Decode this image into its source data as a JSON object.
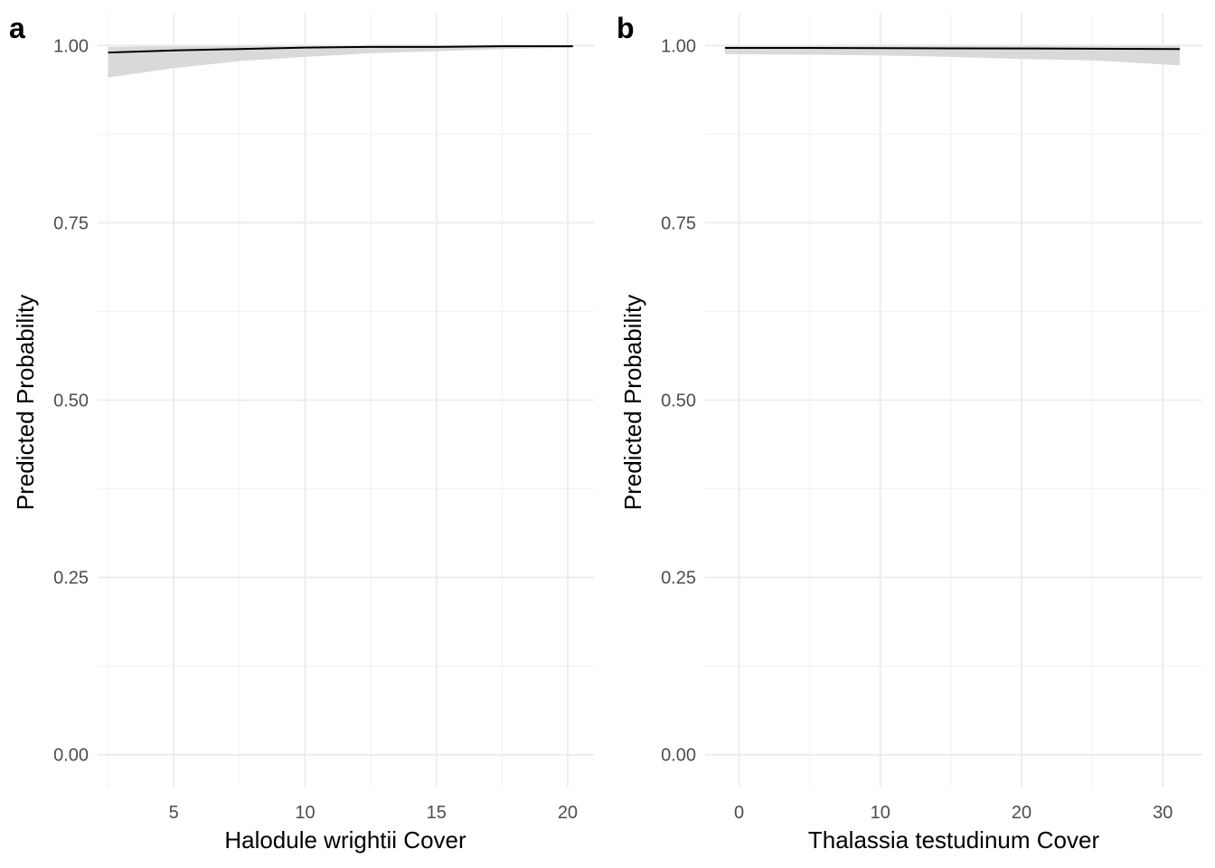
{
  "colors": {
    "grid_major": "#ebebeb",
    "grid_minor": "#f3f3f3",
    "ribbon": "#d9d9d9",
    "line": "#000000"
  },
  "chart_data": [
    {
      "type": "line",
      "panel_tag": "a",
      "xlabel": "Halodule wrightii Cover",
      "ylabel": "Predicted Probability",
      "xlim": [
        2.1,
        21.0
      ],
      "ylim": [
        -0.045,
        1.045
      ],
      "x_ticks": [
        5,
        10,
        15,
        20
      ],
      "x_tick_labels": [
        "5",
        "10",
        "15",
        "20"
      ],
      "x_minor_ticks": [
        2.5,
        7.5,
        12.5,
        17.5
      ],
      "y_ticks": [
        0,
        0.25,
        0.5,
        0.75,
        1.0
      ],
      "y_tick_labels": [
        "0.00",
        "0.25",
        "0.50",
        "0.75",
        "1.00"
      ],
      "y_minor_ticks": [
        0.125,
        0.375,
        0.625,
        0.875
      ],
      "grid": true,
      "series": [
        {
          "x": [
            2.5,
            5,
            7.5,
            10,
            12.5,
            15,
            17.5,
            20.2
          ],
          "y": [
            0.99,
            0.993,
            0.995,
            0.997,
            0.998,
            0.998,
            0.999,
            0.999
          ],
          "lower": [
            0.955,
            0.968,
            0.978,
            0.984,
            0.989,
            0.992,
            0.995,
            0.997
          ],
          "upper": [
            0.998,
            0.999,
            0.999,
            0.999,
            1.0,
            1.0,
            1.0,
            1.0
          ]
        }
      ]
    },
    {
      "type": "line",
      "panel_tag": "b",
      "xlabel": "Thalassia testudinum Cover",
      "ylabel": "Predicted Probability",
      "xlim": [
        -2.4,
        32.8
      ],
      "ylim": [
        -0.045,
        1.045
      ],
      "x_ticks": [
        0,
        10,
        20,
        30
      ],
      "x_tick_labels": [
        "0",
        "10",
        "20",
        "30"
      ],
      "x_minor_ticks": [
        -5,
        5,
        15,
        25
      ],
      "y_ticks": [
        0,
        0.25,
        0.5,
        0.75,
        1.0
      ],
      "y_tick_labels": [
        "0.00",
        "0.25",
        "0.50",
        "0.75",
        "1.00"
      ],
      "y_minor_ticks": [
        0.125,
        0.375,
        0.625,
        0.875
      ],
      "grid": true,
      "series": [
        {
          "x": [
            -1,
            5,
            10,
            15,
            20,
            25,
            31.2
          ],
          "y": [
            0.9965,
            0.9965,
            0.9963,
            0.996,
            0.9958,
            0.9955,
            0.995
          ],
          "lower": [
            0.988,
            0.987,
            0.986,
            0.984,
            0.981,
            0.979,
            0.972
          ],
          "upper": [
            0.999,
            0.999,
            0.999,
            0.999,
            0.999,
            0.999,
            0.999
          ]
        }
      ]
    }
  ]
}
